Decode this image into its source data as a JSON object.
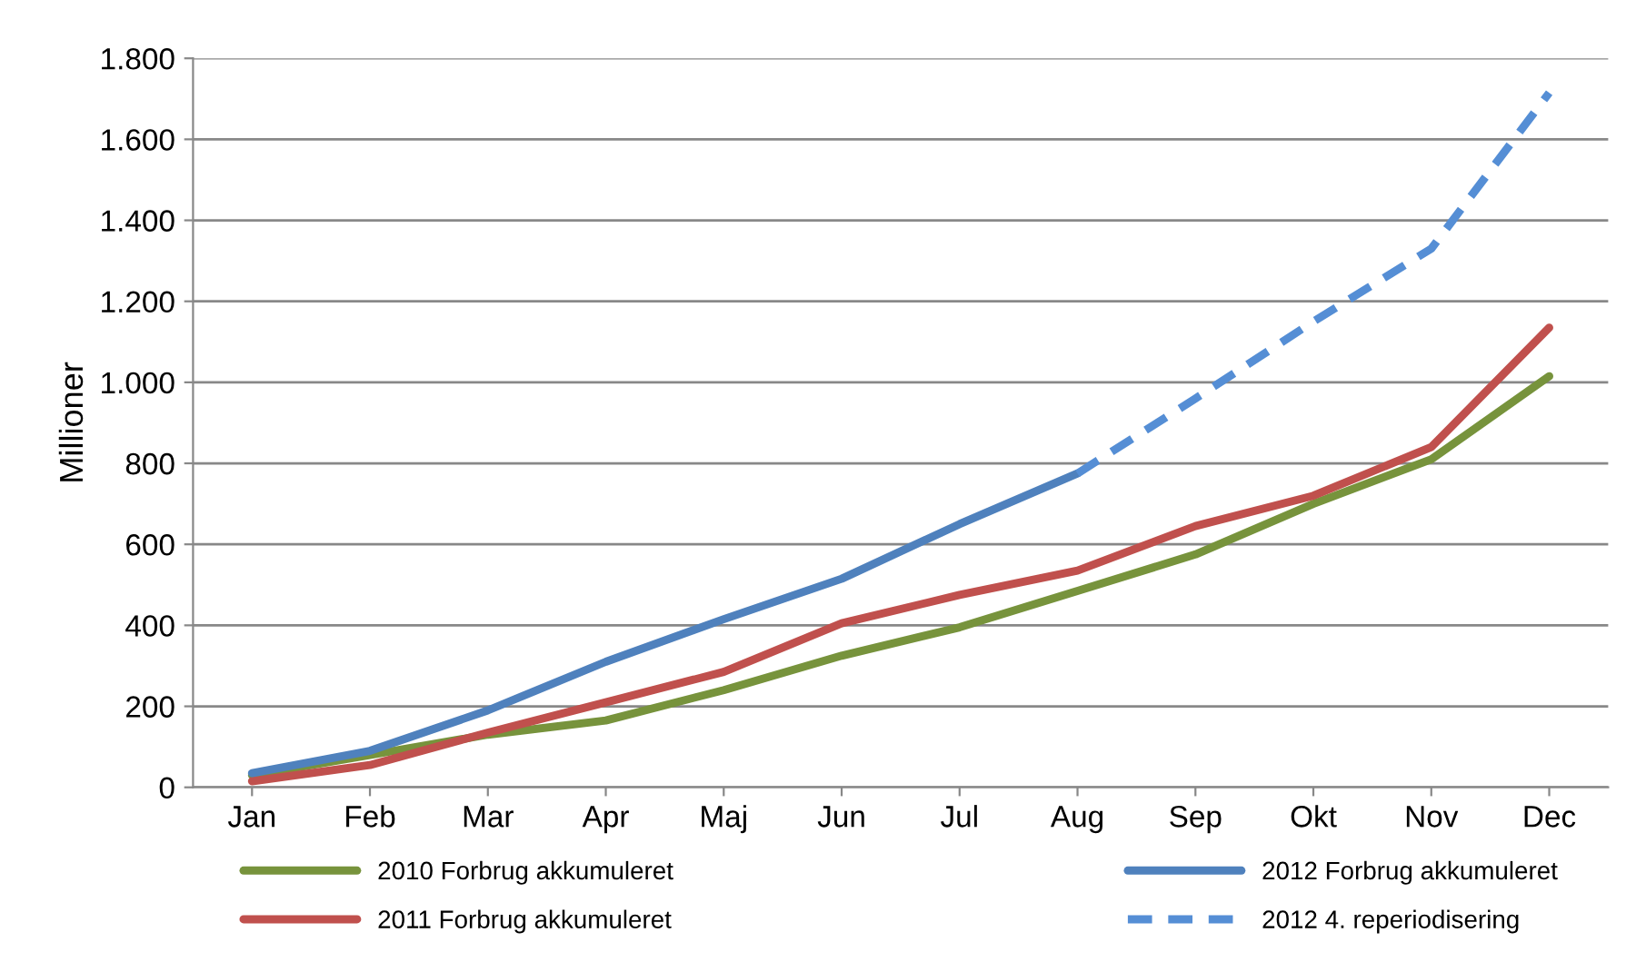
{
  "chart_data": {
    "type": "line",
    "ylabel": "Millioner",
    "categories": [
      "Jan",
      "Feb",
      "Mar",
      "Apr",
      "Maj",
      "Jun",
      "Jul",
      "Aug",
      "Sep",
      "Okt",
      "Nov",
      "Dec"
    ],
    "series": [
      {
        "name": "2010 Forbrug akkumuleret",
        "color": "#77933c",
        "values": [
          30,
          80,
          130,
          165,
          240,
          325,
          395,
          485,
          575,
          700,
          810,
          1015
        ]
      },
      {
        "name": "2011 Forbrug akkumuleret",
        "color": "#c0504d",
        "values": [
          15,
          55,
          135,
          210,
          285,
          405,
          475,
          535,
          645,
          720,
          840,
          1135
        ]
      },
      {
        "name": "2012 Forbrug akkumuleret",
        "color": "#4f81bd",
        "values": [
          35,
          90,
          190,
          310,
          415,
          515,
          650,
          775,
          null,
          null,
          null,
          null
        ]
      },
      {
        "name": "2012 4. reperiodisering",
        "color": "#558ed5",
        "line_style": "dashed",
        "values": [
          null,
          null,
          null,
          null,
          null,
          null,
          null,
          775,
          960,
          1150,
          1330,
          1715
        ]
      }
    ],
    "ylim": [
      0,
      1800
    ],
    "yticks": [
      0,
      200,
      400,
      600,
      800,
      {
        "value": 1000,
        "label": "1.000"
      },
      {
        "value": 1200,
        "label": "1.200"
      },
      {
        "value": 1400,
        "label": "1.400"
      },
      {
        "value": 1600,
        "label": "1.600"
      },
      {
        "value": 1800,
        "label": "1.800"
      }
    ],
    "grid": "y",
    "legend": "bottom",
    "marker": "none",
    "line_style": "solid"
  }
}
